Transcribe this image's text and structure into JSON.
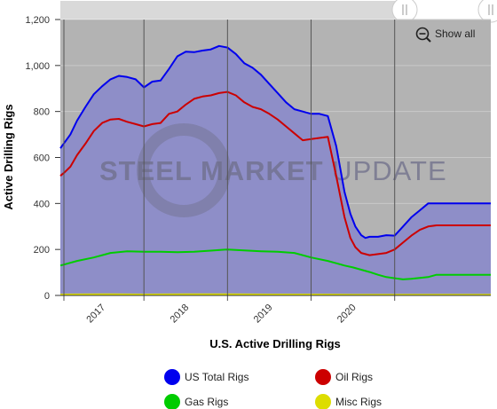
{
  "chart_data": {
    "type": "area",
    "xlabel": "U.S. Active Drilling Rigs",
    "ylabel": "Active Drilling Rigs",
    "ylim": [
      0,
      1200
    ],
    "xlim": [
      2016.0,
      2021.15
    ],
    "y_ticks": [
      "0",
      "200",
      "400",
      "600",
      "800",
      "1,000",
      "1,200"
    ],
    "x_ticks": [
      {
        "label": "2017",
        "x": 2016.5
      },
      {
        "label": "2018",
        "x": 2017.5
      },
      {
        "label": "2019",
        "x": 2018.5
      },
      {
        "label": "2020",
        "x": 2019.5
      }
    ],
    "watermark": {
      "bold": "STEEL MARKET",
      "light": " UPDATE"
    },
    "show_all_label": "Show all",
    "legend_position": "bottom",
    "background_color": "#b3b3b3",
    "series": [
      {
        "name": "US Total Rigs",
        "color": "#0000ee",
        "fill": "#8e8ec8",
        "x": [
          2016.0,
          2016.05,
          2016.12,
          2016.2,
          2016.3,
          2016.4,
          2016.5,
          2016.6,
          2016.7,
          2016.8,
          2016.9,
          2017.0,
          2017.1,
          2017.2,
          2017.3,
          2017.4,
          2017.5,
          2017.6,
          2017.7,
          2017.8,
          2017.9,
          2018.0,
          2018.1,
          2018.2,
          2018.3,
          2018.4,
          2018.5,
          2018.6,
          2018.7,
          2018.8,
          2018.9,
          2019.0,
          2019.1,
          2019.2,
          2019.3,
          2019.4,
          2019.47,
          2019.53,
          2019.6,
          2019.65,
          2019.7,
          2019.8,
          2019.9,
          2020.0,
          2020.1,
          2020.2,
          2020.3,
          2020.4,
          2020.5,
          2020.6,
          2020.7,
          2020.8,
          2020.9,
          2021.0,
          2021.1,
          2021.15
        ],
        "y": [
          640,
          665,
          700,
          760,
          820,
          875,
          910,
          940,
          955,
          950,
          940,
          905,
          930,
          935,
          985,
          1040,
          1060,
          1058,
          1065,
          1070,
          1085,
          1078,
          1050,
          1010,
          990,
          960,
          920,
          880,
          840,
          810,
          800,
          790,
          790,
          780,
          650,
          450,
          355,
          300,
          262,
          250,
          255,
          255,
          262,
          260,
          300,
          340,
          370,
          400,
          400,
          400,
          400,
          400,
          400,
          400,
          400,
          400
        ]
      },
      {
        "name": "Oil Rigs",
        "color": "#cc0000",
        "fill": "#8e8ec8",
        "x": [
          2016.0,
          2016.05,
          2016.12,
          2016.2,
          2016.3,
          2016.4,
          2016.5,
          2016.6,
          2016.7,
          2016.8,
          2016.9,
          2017.0,
          2017.1,
          2017.2,
          2017.3,
          2017.4,
          2017.5,
          2017.6,
          2017.7,
          2017.8,
          2017.9,
          2018.0,
          2018.1,
          2018.2,
          2018.3,
          2018.4,
          2018.5,
          2018.6,
          2018.7,
          2018.8,
          2018.9,
          2019.0,
          2019.1,
          2019.2,
          2019.3,
          2019.4,
          2019.47,
          2019.53,
          2019.6,
          2019.65,
          2019.7,
          2019.8,
          2019.9,
          2020.0,
          2020.1,
          2020.2,
          2020.3,
          2020.4,
          2020.5,
          2020.6,
          2020.7,
          2020.8,
          2020.9,
          2021.0,
          2021.1,
          2021.15
        ],
        "y": [
          520,
          535,
          560,
          610,
          660,
          715,
          750,
          765,
          768,
          755,
          745,
          735,
          745,
          750,
          790,
          800,
          830,
          855,
          865,
          870,
          880,
          885,
          870,
          840,
          820,
          810,
          790,
          765,
          735,
          705,
          675,
          680,
          685,
          690,
          520,
          340,
          250,
          210,
          185,
          180,
          175,
          180,
          185,
          200,
          230,
          260,
          285,
          300,
          305,
          305,
          305,
          305,
          305,
          305,
          305,
          305
        ]
      },
      {
        "name": "Gas Rigs",
        "color": "#00cc00",
        "fill": "#8e8ec8",
        "x": [
          2016.0,
          2016.2,
          2016.4,
          2016.6,
          2016.8,
          2017.0,
          2017.2,
          2017.4,
          2017.6,
          2017.8,
          2018.0,
          2018.2,
          2018.4,
          2018.6,
          2018.8,
          2019.0,
          2019.2,
          2019.3,
          2019.4,
          2019.5,
          2019.6,
          2019.7,
          2019.8,
          2019.9,
          2020.0,
          2020.1,
          2020.2,
          2020.3,
          2020.4,
          2020.5,
          2020.6,
          2020.7,
          2020.8,
          2020.9,
          2021.0,
          2021.15
        ],
        "y": [
          130,
          150,
          165,
          185,
          192,
          190,
          190,
          188,
          190,
          195,
          200,
          196,
          192,
          190,
          185,
          165,
          150,
          140,
          130,
          122,
          112,
          102,
          90,
          80,
          75,
          70,
          72,
          76,
          80,
          90,
          90,
          90,
          90,
          90,
          90,
          90
        ]
      },
      {
        "name": "Misc Rigs",
        "color": "#dddd00",
        "fill": "#8e8ec8",
        "x": [
          2016.0,
          2016.5,
          2017.0,
          2017.5,
          2018.0,
          2018.5,
          2019.0,
          2019.5,
          2020.0,
          2020.5,
          2021.0,
          2021.15
        ],
        "y": [
          4,
          5,
          4,
          5,
          5,
          4,
          4,
          3,
          3,
          3,
          3,
          3
        ]
      }
    ]
  }
}
